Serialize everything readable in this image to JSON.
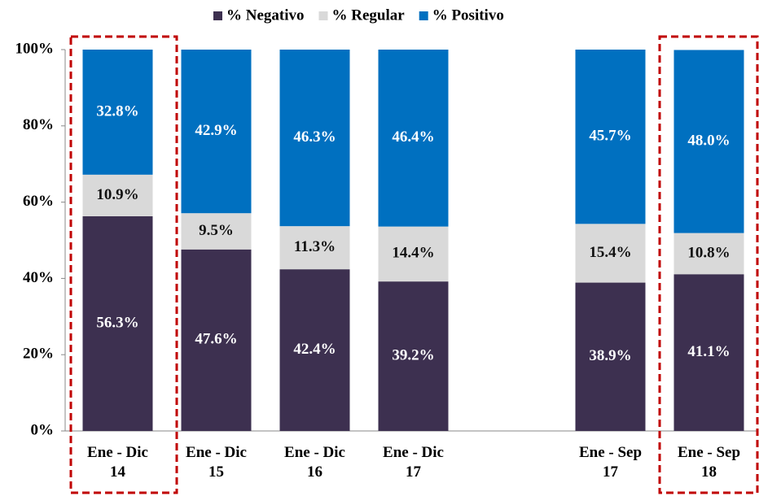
{
  "chart_data": {
    "type": "stacked_bar",
    "categories": [
      "Ene - Dic 14",
      "Ene - Dic 15",
      "Ene - Dic 16",
      "Ene - Dic 17",
      null,
      "Ene - Sep 17",
      "Ene - Sep 18"
    ],
    "series": [
      {
        "name": "% Negativo",
        "color": "#3d3050",
        "values": [
          56.3,
          47.6,
          42.4,
          39.2,
          null,
          38.9,
          41.1
        ],
        "value_labels": [
          "56.3%",
          "47.6%",
          "42.4%",
          "39.2%",
          null,
          "38.9%",
          "41.1%"
        ]
      },
      {
        "name": "% Regular",
        "color": "#d9d9d9",
        "values": [
          10.9,
          9.5,
          11.3,
          14.4,
          null,
          15.4,
          10.8
        ],
        "value_labels": [
          "10.9%",
          "9.5%",
          "11.3%",
          "14.4%",
          null,
          "15.4%",
          "10.8%"
        ]
      },
      {
        "name": "% Positivo",
        "color": "#0070c0",
        "values": [
          32.8,
          42.9,
          46.3,
          46.4,
          null,
          45.7,
          48.0
        ],
        "value_labels": [
          "32.8%",
          "42.9%",
          "46.3%",
          "46.4%",
          null,
          "45.7%",
          "48.0%"
        ]
      }
    ],
    "ylim": [
      0,
      100
    ],
    "yticks": [
      {
        "value": 0,
        "label": "0%"
      },
      {
        "value": 20,
        "label": "20%"
      },
      {
        "value": 40,
        "label": "40%"
      },
      {
        "value": 60,
        "label": "60%"
      },
      {
        "value": 80,
        "label": "80%"
      },
      {
        "value": 100,
        "label": "100%"
      }
    ],
    "legend": "top"
  }
}
